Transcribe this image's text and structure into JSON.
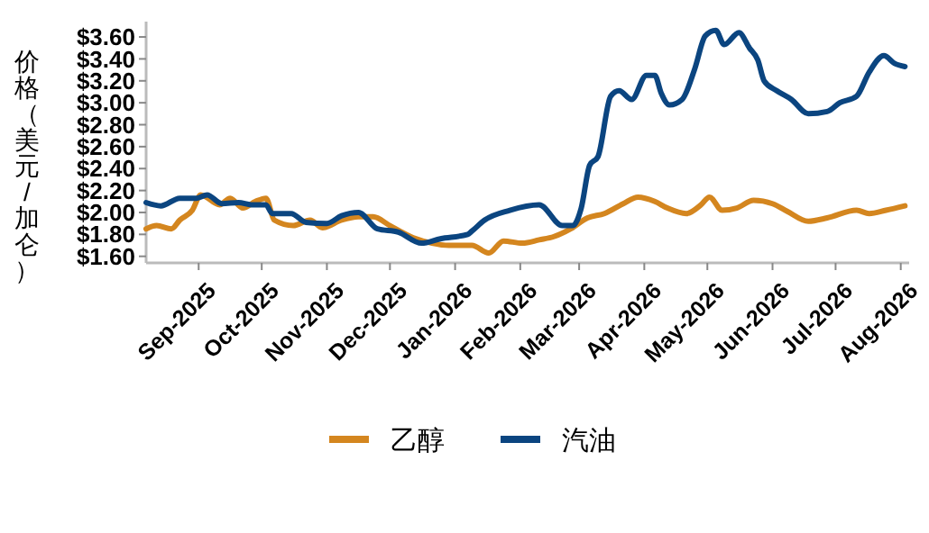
{
  "chart_data": {
    "type": "line",
    "ylabel": "价格（美元/加仑）",
    "legend": "bottom",
    "grid": false,
    "line_style": "solid",
    "marker": "none",
    "xlim": [
      "2025-08-07",
      "2026-08-05"
    ],
    "xticks": [
      {
        "value": "2025-09-01",
        "label": "Sep-2025"
      },
      {
        "value": "2025-10-01",
        "label": "Oct-2025"
      },
      {
        "value": "2025-11-01",
        "label": "Nov-2025"
      },
      {
        "value": "2025-12-01",
        "label": "Dec-2025"
      },
      {
        "value": "2026-01-01",
        "label": "Jan-2026"
      },
      {
        "value": "2026-02-01",
        "label": "Feb-2026"
      },
      {
        "value": "2026-03-01",
        "label": "Mar-2026"
      },
      {
        "value": "2026-04-01",
        "label": "Apr-2026"
      },
      {
        "value": "2026-05-01",
        "label": "May-2026"
      },
      {
        "value": "2026-06-01",
        "label": "Jun-2026"
      },
      {
        "value": "2026-07-01",
        "label": "Jul-2026"
      },
      {
        "value": "2026-08-01",
        "label": "Aug-2026"
      }
    ],
    "ylim": [
      1.54,
      3.74
    ],
    "yticks": [
      {
        "value": 1.6,
        "label": "$1.60"
      },
      {
        "value": 1.8,
        "label": "$1.80"
      },
      {
        "value": 2.0,
        "label": "$2.00"
      },
      {
        "value": 2.2,
        "label": "$2.20"
      },
      {
        "value": 2.4,
        "label": "$2.40"
      },
      {
        "value": 2.6,
        "label": "$2.60"
      },
      {
        "value": 2.8,
        "label": "$2.80"
      },
      {
        "value": 3.0,
        "label": "$3.00"
      },
      {
        "value": 3.2,
        "label": "$3.20"
      },
      {
        "value": 3.4,
        "label": "$3.40"
      },
      {
        "value": 3.6,
        "label": "$3.60"
      }
    ],
    "series": [
      {
        "name": "乙醇",
        "color": "#d4861f",
        "x": [
          "2025-08-07",
          "2025-08-12",
          "2025-08-19",
          "2025-08-23",
          "2025-08-29",
          "2025-09-02",
          "2025-09-11",
          "2025-09-16",
          "2025-09-22",
          "2025-09-28",
          "2025-10-03",
          "2025-10-07",
          "2025-10-16",
          "2025-10-24",
          "2025-10-30",
          "2025-11-08",
          "2025-11-16",
          "2025-11-23",
          "2025-12-01",
          "2025-12-12",
          "2025-12-21",
          "2025-12-29",
          "2026-01-09",
          "2026-01-17",
          "2026-01-24",
          "2026-02-02",
          "2026-02-10",
          "2026-02-17",
          "2026-02-25",
          "2026-03-05",
          "2026-03-13",
          "2026-03-22",
          "2026-03-29",
          "2026-04-06",
          "2026-04-12",
          "2026-04-21",
          "2026-04-28",
          "2026-05-02",
          "2026-05-08",
          "2026-05-15",
          "2026-05-23",
          "2026-06-01",
          "2026-06-08",
          "2026-06-18",
          "2026-06-27",
          "2026-07-11",
          "2026-07-17",
          "2026-07-25",
          "2026-08-03"
        ],
        "values": [
          1.85,
          1.88,
          1.85,
          1.93,
          2.02,
          2.16,
          2.07,
          2.13,
          2.04,
          2.1,
          2.13,
          1.93,
          1.88,
          1.93,
          1.86,
          1.93,
          1.96,
          1.96,
          1.88,
          1.77,
          1.72,
          1.7,
          1.7,
          1.63,
          1.74,
          1.72,
          1.75,
          1.78,
          1.85,
          1.95,
          1.99,
          2.08,
          2.14,
          2.1,
          2.04,
          1.99,
          2.07,
          2.14,
          2.02,
          2.04,
          2.11,
          2.08,
          2.01,
          1.92,
          1.95,
          2.02,
          1.99,
          2.02,
          2.06
        ]
      },
      {
        "name": "汽油",
        "color": "#0b4580",
        "x": [
          "2025-08-07",
          "2025-08-14",
          "2025-08-23",
          "2025-08-31",
          "2025-09-05",
          "2025-09-12",
          "2025-09-20",
          "2025-09-26",
          "2025-10-03",
          "2025-10-06",
          "2025-10-15",
          "2025-10-22",
          "2025-11-01",
          "2025-11-08",
          "2025-11-16",
          "2025-11-25",
          "2025-12-05",
          "2025-12-16",
          "2025-12-25",
          "2026-01-07",
          "2026-01-09",
          "2026-01-15",
          "2026-01-27",
          "2026-02-10",
          "2026-02-21",
          "2026-02-26",
          "2026-03-02",
          "2026-03-06",
          "2026-03-10",
          "2026-03-16",
          "2026-03-20",
          "2026-03-26",
          "2026-04-02",
          "2026-04-06",
          "2026-04-09",
          "2026-04-13",
          "2026-04-19",
          "2026-04-25",
          "2026-04-30",
          "2026-05-05",
          "2026-05-09",
          "2026-05-16",
          "2026-05-21",
          "2026-05-25",
          "2026-05-28",
          "2026-06-03",
          "2026-06-10",
          "2026-06-18",
          "2026-06-27",
          "2026-07-03",
          "2026-07-11",
          "2026-07-17",
          "2026-07-24",
          "2026-07-29",
          "2026-08-03"
        ],
        "values": [
          2.09,
          2.06,
          2.13,
          2.13,
          2.16,
          2.08,
          2.09,
          2.07,
          2.07,
          1.99,
          1.99,
          1.91,
          1.9,
          1.97,
          2.0,
          1.85,
          1.82,
          1.72,
          1.76,
          1.8,
          1.83,
          1.93,
          2.02,
          2.07,
          1.88,
          1.88,
          2.04,
          2.43,
          2.51,
          3.06,
          3.11,
          3.03,
          3.25,
          3.25,
          3.09,
          2.98,
          3.03,
          3.31,
          3.61,
          3.66,
          3.53,
          3.64,
          3.5,
          3.39,
          3.2,
          3.11,
          3.03,
          2.9,
          2.92,
          3.0,
          3.06,
          3.28,
          3.43,
          3.36,
          3.33
        ]
      }
    ]
  }
}
